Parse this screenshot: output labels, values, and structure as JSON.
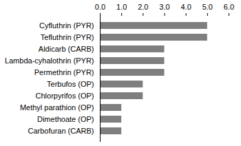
{
  "chart_data": {
    "type": "bar",
    "orientation": "horizontal",
    "categories": [
      "Cyfluthrin (PYR)",
      "Tefluthrin (PYR)",
      "Aldicarb (CARB)",
      "Lambda-cyhalothrin (PYR)",
      "Permethrin (PYR)",
      "Terbufos (OP)",
      "Chlorpyrifos (OP)",
      "Methyl parathion (OP)",
      "Dimethoate (OP)",
      "Carbofuran (CARB)"
    ],
    "values": [
      5,
      5,
      3,
      3,
      3,
      2,
      2,
      1,
      1,
      1
    ],
    "color": "#7f7f7f",
    "xlim": [
      0,
      6
    ],
    "xticks": [
      0,
      1,
      2,
      3,
      4,
      5,
      6
    ],
    "grid": false
  }
}
